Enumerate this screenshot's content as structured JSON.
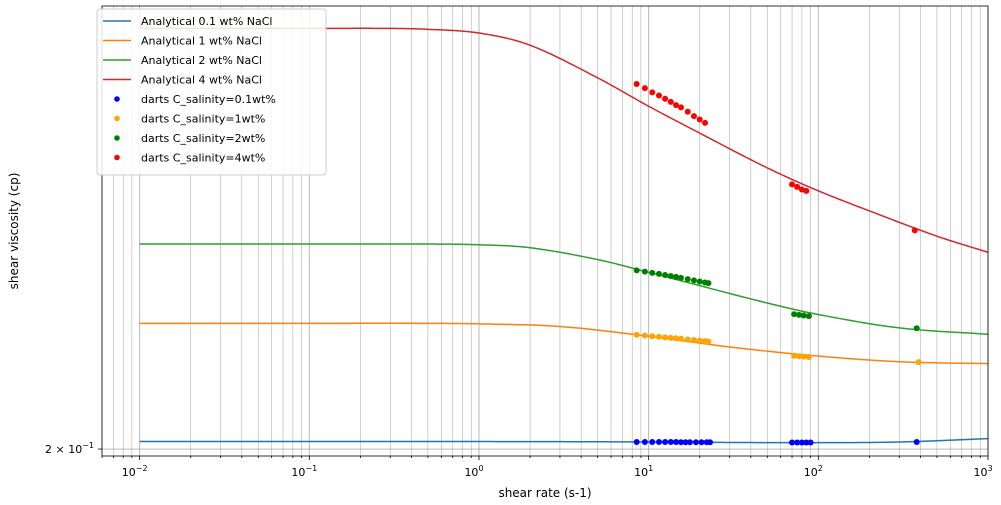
{
  "chart_data": {
    "type": "line",
    "xscale": "log",
    "yscale": "log",
    "xlabel": "shear rate (s-1)",
    "ylabel": "shear viscosity (cp)",
    "xlim": [
      0.006,
      1000
    ],
    "ylim": [
      0.197,
      0.525
    ],
    "xticks": [
      {
        "value": 0.01,
        "base": "10",
        "exp": "−2"
      },
      {
        "value": 0.1,
        "base": "10",
        "exp": "−1"
      },
      {
        "value": 1,
        "base": "10",
        "exp": "0"
      },
      {
        "value": 10,
        "base": "10",
        "exp": "1"
      },
      {
        "value": 100,
        "base": "10",
        "exp": "2"
      },
      {
        "value": 1000,
        "base": "10",
        "exp": "3"
      }
    ],
    "yticks": [
      {
        "value": 0.2,
        "mant": "2 × 10",
        "exp": "−1"
      }
    ],
    "grid": "both, major and minor x",
    "legend_position": "upper-left",
    "series": [
      {
        "name": "Analytical 0.1 wt% NaCl",
        "kind": "line",
        "color": "#1f77b4",
        "x": [
          0.01,
          0.1,
          1,
          5,
          10,
          30,
          100,
          300,
          1000
        ],
        "y": [
          0.2033,
          0.2033,
          0.2033,
          0.2032,
          0.2031,
          0.2029,
          0.2028,
          0.2031,
          0.2046
        ]
      },
      {
        "name": "Analytical 1 wt% NaCl",
        "kind": "line",
        "color": "#ff7f0e",
        "x": [
          0.01,
          0.1,
          0.5,
          1,
          3,
          10,
          30,
          100,
          300,
          1000
        ],
        "y": [
          0.263,
          0.263,
          0.263,
          0.2627,
          0.2612,
          0.2557,
          0.2498,
          0.2449,
          0.2419,
          0.2409
        ]
      },
      {
        "name": "Analytical 2 wt% NaCl",
        "kind": "line",
        "color": "#2ca02c",
        "x": [
          0.01,
          0.1,
          0.5,
          1,
          2,
          5,
          10,
          20,
          50,
          100,
          300,
          1000
        ],
        "y": [
          0.3126,
          0.3126,
          0.3126,
          0.3121,
          0.3101,
          0.3022,
          0.2939,
          0.2855,
          0.2749,
          0.2681,
          0.2604,
          0.2568
        ]
      },
      {
        "name": "Analytical 4 wt% NaCl",
        "kind": "line",
        "color": "#d62728",
        "x": [
          0.01,
          0.1,
          0.3,
          0.5,
          1,
          2,
          5,
          10,
          20,
          50,
          100,
          200,
          500,
          1000
        ],
        "y": [
          0.5,
          0.5,
          0.5,
          0.499,
          0.495,
          0.482,
          0.449,
          0.422,
          0.398,
          0.369,
          0.351,
          0.336,
          0.318,
          0.307
        ]
      },
      {
        "name": "darts C_salinity=0.1wt%",
        "kind": "points",
        "color": "#0000ff",
        "x": [
          8.5,
          9.5,
          10.5,
          11.5,
          12.5,
          13.5,
          14.5,
          15.5,
          16.5,
          17.5,
          19,
          20.5,
          22,
          23,
          70,
          75,
          80,
          85,
          90,
          380
        ],
        "y": [
          0.2031,
          0.2031,
          0.2031,
          0.2031,
          0.2031,
          0.2031,
          0.2031,
          0.203,
          0.203,
          0.203,
          0.203,
          0.203,
          0.203,
          0.203,
          0.2029,
          0.2029,
          0.2029,
          0.2029,
          0.2029,
          0.2031
        ]
      },
      {
        "name": "darts C_salinity=1wt%",
        "kind": "points",
        "color": "#ffa500",
        "x": [
          8.5,
          9.5,
          10.5,
          11.5,
          12.5,
          13.5,
          14.5,
          15.5,
          17,
          18.5,
          20,
          21.5,
          22.5,
          72,
          77,
          82,
          88,
          390
        ],
        "y": [
          0.2565,
          0.2561,
          0.2557,
          0.2554,
          0.2551,
          0.2548,
          0.2546,
          0.2543,
          0.2539,
          0.2536,
          0.2533,
          0.253,
          0.2528,
          0.2451,
          0.2448,
          0.2446,
          0.2444,
          0.2417
        ]
      },
      {
        "name": "darts C_salinity=2wt%",
        "kind": "points",
        "color": "#008000",
        "x": [
          8.5,
          9.5,
          10.5,
          11.5,
          12.5,
          13.5,
          14.5,
          15.5,
          17,
          18.5,
          20,
          21.5,
          22.5,
          72,
          77,
          82,
          88,
          380
        ],
        "y": [
          0.2952,
          0.2944,
          0.2936,
          0.2929,
          0.2922,
          0.2916,
          0.291,
          0.2904,
          0.2896,
          0.2888,
          0.2881,
          0.2875,
          0.2871,
          0.2683,
          0.2679,
          0.2675,
          0.2672,
          0.2602
        ]
      },
      {
        "name": "darts C_salinity=4wt%",
        "kind": "points",
        "color": "#ff0000",
        "x": [
          8.5,
          9.5,
          10.5,
          11.5,
          12.5,
          13.5,
          14.5,
          15.5,
          17,
          18.5,
          20,
          21.5,
          70,
          75,
          80,
          85,
          370
        ],
        "y": [
          0.443,
          0.439,
          0.435,
          0.432,
          0.429,
          0.426,
          0.423,
          0.421,
          0.417,
          0.413,
          0.41,
          0.407,
          0.356,
          0.354,
          0.352,
          0.351,
          0.322
        ]
      }
    ]
  }
}
